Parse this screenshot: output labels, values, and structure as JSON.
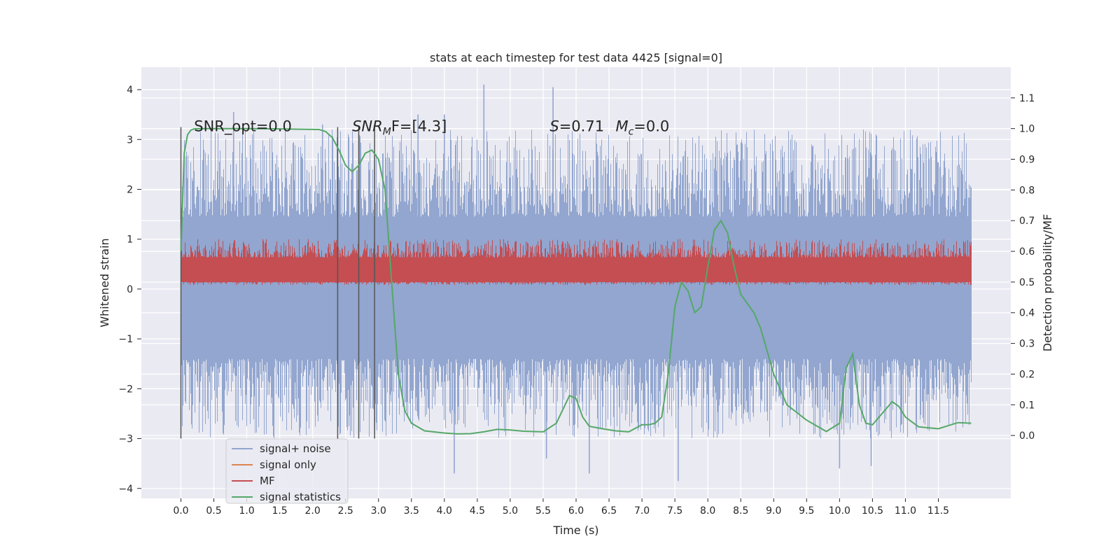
{
  "chart_data": {
    "type": "line",
    "title": "stats at each timestep for test data 4425 [signal=0]",
    "xlabel": "Time (s)",
    "ylabel": "Whitened strain",
    "y2label": "Detection probability/MF",
    "xlim": [
      -0.6,
      12.6
    ],
    "ylim": [
      -4.2,
      4.45
    ],
    "y2lim": [
      -0.205,
      1.2
    ],
    "grid": true,
    "legend_position": "bottom-left",
    "x_ticks": [
      0.0,
      0.5,
      1.0,
      1.5,
      2.0,
      2.5,
      3.0,
      3.5,
      4.0,
      4.5,
      5.0,
      5.5,
      6.0,
      6.5,
      7.0,
      7.5,
      8.0,
      8.5,
      9.0,
      9.5,
      10.0,
      10.5,
      11.0,
      11.5
    ],
    "x_tick_labels": [
      "0.0",
      "0.5",
      "1.0",
      "1.5",
      "2.0",
      "2.5",
      "3.0",
      "3.5",
      "4.0",
      "4.5",
      "5.0",
      "5.5",
      "6.0",
      "6.5",
      "7.0",
      "7.5",
      "8.0",
      "8.5",
      "9.0",
      "9.5",
      "10.0",
      "10.5",
      "11.0",
      "11.5"
    ],
    "y_ticks": [
      4,
      3,
      2,
      1,
      0,
      -1,
      -2,
      -3,
      -4
    ],
    "y_tick_labels": [
      "4",
      "3",
      "2",
      "1",
      "0",
      "−1",
      "−2",
      "−3",
      "−4"
    ],
    "y2_ticks": [
      1.1,
      1.0,
      0.9,
      0.8,
      0.7,
      0.6,
      0.5,
      0.4,
      0.3,
      0.2,
      0.1,
      0.0
    ],
    "y2_tick_labels": [
      "1.1",
      "1.0",
      "0.9",
      "0.8",
      "0.7",
      "0.6",
      "0.5",
      "0.4",
      "0.3",
      "0.2",
      "0.1",
      "0.0"
    ],
    "annotations": [
      {
        "text": "SNR_opt=0.0",
        "x": 0.2
      },
      {
        "text": "SNR",
        "sub": "M",
        "after": "F=[4.3]",
        "italic": true,
        "x": 2.6
      },
      {
        "text": "S",
        "after": "=0.71",
        "italic": true,
        "x": 5.6
      },
      {
        "text": "M",
        "sub": "c",
        "after": "=0.0",
        "italic": true,
        "x": 6.6
      }
    ],
    "annotation_y": 3.25,
    "vertical_markers": [
      {
        "x": 0.0,
        "y_range": [
          -3.0,
          3.25
        ]
      },
      {
        "x": 2.38,
        "y_range": [
          -3.0,
          3.25
        ]
      },
      {
        "x": 2.7,
        "y_range": [
          -3.0,
          3.25
        ]
      },
      {
        "x": 2.94,
        "y_range": [
          -3.0,
          3.25
        ]
      }
    ],
    "series": [
      {
        "name": "signal+ noise",
        "axis": "left",
        "color": "#92a6cf",
        "x_range": [
          0.0,
          12.0
        ],
        "band": [
          -1.4,
          1.45
        ],
        "typical_extremes": [
          -3.0,
          3.2
        ],
        "peaks": [
          {
            "x": 4.6,
            "y": 4.1
          },
          {
            "x": 5.65,
            "y": 4.05
          },
          {
            "x": 0.8,
            "y": 3.55
          },
          {
            "x": 2.15,
            "y": 3.3
          },
          {
            "x": 3.6,
            "y": 3.5
          },
          {
            "x": 4.0,
            "y": 3.5
          },
          {
            "x": 7.55,
            "y": -3.85
          },
          {
            "x": 4.15,
            "y": -3.7
          },
          {
            "x": 6.2,
            "y": -3.7
          },
          {
            "x": 10.48,
            "y": -3.55
          },
          {
            "x": 10.0,
            "y": -3.6
          },
          {
            "x": 5.55,
            "y": -3.4
          }
        ]
      },
      {
        "name": "signal only",
        "axis": "left",
        "color": "#dd8452",
        "points": []
      },
      {
        "name": "MF",
        "axis": "right",
        "color": "#c44e52",
        "x_range": [
          0.0,
          12.0
        ],
        "band": [
          0.5,
          0.58
        ],
        "max": 0.64
      },
      {
        "name": "signal statistics",
        "axis": "right",
        "color": "#55a868",
        "x": [
          0.0,
          0.05,
          0.1,
          0.15,
          0.2,
          0.3,
          0.5,
          1.0,
          1.5,
          1.8,
          2.1,
          2.2,
          2.3,
          2.4,
          2.5,
          2.6,
          2.7,
          2.8,
          2.9,
          3.0,
          3.1,
          3.2,
          3.3,
          3.4,
          3.5,
          3.7,
          4.0,
          4.2,
          4.4,
          4.6,
          4.8,
          5.0,
          5.2,
          5.5,
          5.7,
          5.9,
          6.0,
          6.1,
          6.2,
          6.4,
          6.6,
          6.8,
          7.0,
          7.1,
          7.2,
          7.3,
          7.4,
          7.5,
          7.6,
          7.7,
          7.8,
          7.9,
          8.0,
          8.1,
          8.2,
          8.3,
          8.4,
          8.5,
          8.6,
          8.7,
          8.8,
          9.0,
          9.2,
          9.5,
          9.8,
          10.0,
          10.1,
          10.2,
          10.3,
          10.4,
          10.5,
          10.6,
          10.8,
          10.9,
          11.0,
          11.2,
          11.5,
          11.8,
          12.0
        ],
        "y": [
          0.6,
          0.92,
          0.98,
          0.995,
          0.999,
          1.0,
          1.0,
          1.0,
          0.999,
          0.998,
          0.997,
          0.99,
          0.97,
          0.93,
          0.88,
          0.86,
          0.88,
          0.92,
          0.93,
          0.9,
          0.8,
          0.5,
          0.2,
          0.08,
          0.04,
          0.015,
          0.008,
          0.005,
          0.006,
          0.012,
          0.02,
          0.018,
          0.014,
          0.012,
          0.04,
          0.13,
          0.12,
          0.06,
          0.03,
          0.022,
          0.015,
          0.012,
          0.035,
          0.035,
          0.04,
          0.06,
          0.2,
          0.42,
          0.5,
          0.47,
          0.4,
          0.42,
          0.55,
          0.67,
          0.7,
          0.66,
          0.55,
          0.46,
          0.43,
          0.4,
          0.35,
          0.2,
          0.1,
          0.05,
          0.013,
          0.04,
          0.22,
          0.265,
          0.1,
          0.04,
          0.035,
          0.06,
          0.11,
          0.095,
          0.06,
          0.028,
          0.022,
          0.042,
          0.04
        ]
      }
    ]
  }
}
